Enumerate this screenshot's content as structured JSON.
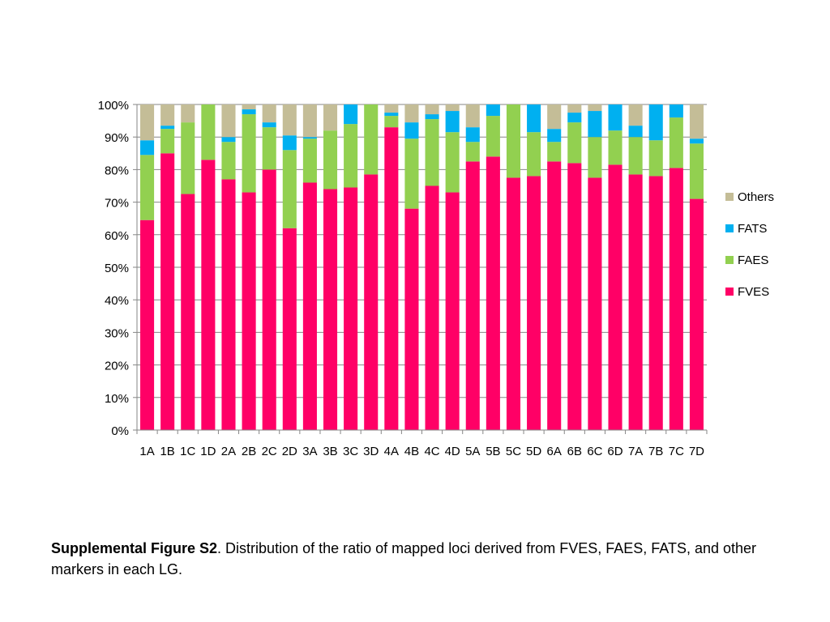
{
  "chart_data": {
    "type": "bar",
    "stacked": true,
    "percent": true,
    "categories": [
      "1A",
      "1B",
      "1C",
      "1D",
      "2A",
      "2B",
      "2C",
      "2D",
      "3A",
      "3B",
      "3C",
      "3D",
      "4A",
      "4B",
      "4C",
      "4D",
      "5A",
      "5B",
      "5C",
      "5D",
      "6A",
      "6B",
      "6C",
      "6D",
      "7A",
      "7B",
      "7C",
      "7D"
    ],
    "series": [
      {
        "name": "FVES",
        "color": "#ff0066",
        "values": [
          64.5,
          85,
          72.5,
          83,
          77,
          73,
          80,
          62,
          76,
          74,
          74.5,
          78.5,
          93,
          68,
          75,
          73,
          82.5,
          84,
          77.5,
          78,
          82.5,
          82,
          77.5,
          81.5,
          78.5,
          78,
          80.5,
          71
        ]
      },
      {
        "name": "FAES",
        "color": "#92d050",
        "values": [
          20,
          7.5,
          22,
          17,
          11.5,
          24,
          13,
          24,
          13.5,
          18,
          19.5,
          21.5,
          3.5,
          21.5,
          20.5,
          18.5,
          6,
          12.5,
          22.5,
          13.5,
          6,
          12.5,
          12.5,
          10.5,
          11.5,
          11,
          15.5,
          17
        ]
      },
      {
        "name": "FATS",
        "color": "#00b0f0",
        "values": [
          4.5,
          1,
          0,
          0,
          1.5,
          1.5,
          1.5,
          4.5,
          0.5,
          0,
          6,
          0,
          1,
          5,
          1.5,
          6.5,
          4.5,
          3.5,
          0,
          8.5,
          4,
          3,
          8,
          8,
          3.5,
          11,
          4,
          1.5
        ]
      },
      {
        "name": "Others",
        "color": "#c4bd97",
        "values": [
          11,
          6.5,
          5.5,
          0,
          10,
          1.5,
          5.5,
          9.5,
          10,
          8,
          0,
          0,
          2.5,
          5.5,
          3,
          2,
          7,
          0,
          0,
          0,
          7.5,
          2.5,
          2,
          0,
          6.5,
          0,
          0,
          10.5
        ]
      }
    ],
    "ylim": [
      0,
      100
    ],
    "yticks": [
      "0%",
      "10%",
      "20%",
      "30%",
      "40%",
      "50%",
      "60%",
      "70%",
      "80%",
      "90%",
      "100%"
    ],
    "legend": "right",
    "grid": true
  },
  "caption": {
    "label": "Supplemental Figure S2",
    "text": ". Distribution of the ratio of mapped loci derived from FVES, FAES, FATS, and other markers in each LG."
  }
}
